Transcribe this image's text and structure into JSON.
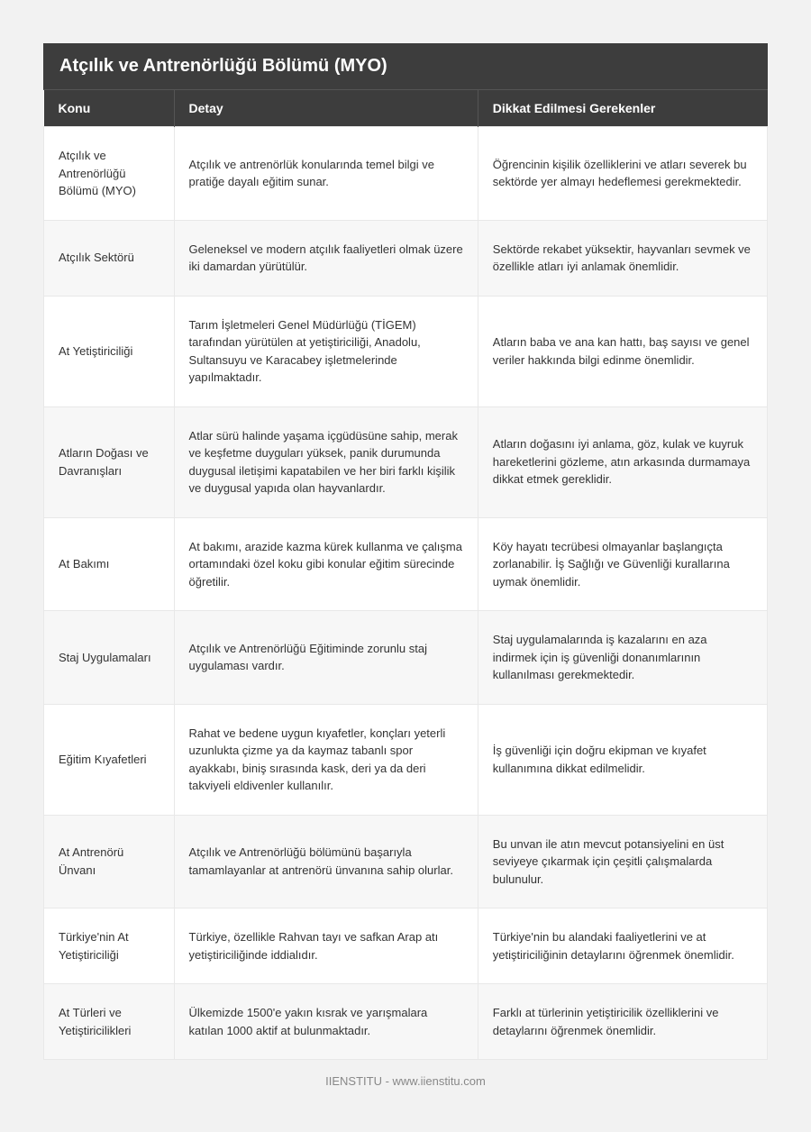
{
  "title": "Atçılık ve Antrenörlüğü Bölümü (MYO)",
  "columns": {
    "topic": "Konu",
    "detail": "Detay",
    "notes": "Dikkat Edilmesi Gerekenler"
  },
  "rows": [
    {
      "topic": "Atçılık ve Antrenörlüğü Bölümü (MYO)",
      "detail": "Atçılık ve antrenörlük konularında temel bilgi ve pratiğe dayalı eğitim sunar.",
      "notes": "Öğrencinin kişilik özelliklerini ve atları severek bu sektörde yer almayı hedeflemesi gerekmektedir."
    },
    {
      "topic": "Atçılık Sektörü",
      "detail": "Geleneksel ve modern atçılık faaliyetleri olmak üzere iki damardan yürütülür.",
      "notes": "Sektörde rekabet yüksektir, hayvanları sevmek ve özellikle atları iyi anlamak önemlidir."
    },
    {
      "topic": "At Yetiştiriciliği",
      "detail": "Tarım İşletmeleri Genel Müdürlüğü (TİGEM) tarafından yürütülen at yetiştiriciliği, Anadolu, Sultansuyu ve Karacabey işletmelerinde yapılmaktadır.",
      "notes": "Atların baba ve ana kan hattı, baş sayısı ve genel veriler hakkında bilgi edinme önemlidir."
    },
    {
      "topic": "Atların Doğası ve Davranışları",
      "detail": "Atlar sürü halinde yaşama içgüdüsüne sahip, merak ve keşfetme duyguları yüksek, panik durumunda duygusal iletişimi kapatabilen ve her biri farklı kişilik ve duygusal yapıda olan hayvanlardır.",
      "notes": "Atların doğasını iyi anlama, göz, kulak ve kuyruk hareketlerini gözleme, atın arkasında durmamaya dikkat etmek gereklidir."
    },
    {
      "topic": "At Bakımı",
      "detail": "At bakımı, arazide kazma kürek kullanma ve çalışma ortamındaki özel koku gibi konular eğitim sürecinde öğretilir.",
      "notes": "Köy hayatı tecrübesi olmayanlar başlangıçta zorlanabilir. İş Sağlığı ve Güvenliği kurallarına uymak önemlidir."
    },
    {
      "topic": "Staj Uygulamaları",
      "detail": "Atçılık ve Antrenörlüğü Eğitiminde zorunlu staj uygulaması vardır.",
      "notes": "Staj uygulamalarında iş kazalarını en aza indirmek için iş güvenliği donanımlarının kullanılması gerekmektedir."
    },
    {
      "topic": "Eğitim Kıyafetleri",
      "detail": "Rahat ve bedene uygun kıyafetler, konçları yeterli uzunlukta çizme ya da kaymaz tabanlı spor ayakkabı, biniş sırasında kask, deri ya da deri takviyeli eldivenler kullanılır.",
      "notes": "İş güvenliği için doğru ekipman ve kıyafet kullanımına dikkat edilmelidir."
    },
    {
      "topic": "At Antrenörü Ünvanı",
      "detail": "Atçılık ve Antrenörlüğü bölümünü başarıyla tamamlayanlar at antrenörü ünvanına sahip olurlar.",
      "notes": "Bu unvan ile atın mevcut potansiyelini en üst seviyeye çıkarmak için çeşitli çalışmalarda bulunulur."
    },
    {
      "topic": "Türkiye'nin At Yetiştiriciliği",
      "detail": "Türkiye, özellikle Rahvan tayı ve safkan Arap atı yetiştiriciliğinde iddialıdır.",
      "notes": "Türkiye'nin bu alandaki faaliyetlerini ve at yetiştiriciliğinin detaylarını öğrenmek önemlidir."
    },
    {
      "topic": "At Türleri ve Yetiştiricilikleri",
      "detail": "Ülkemizde 1500'e yakın kısrak ve yarışmalara katılan 1000 aktif at bulunmaktadır.",
      "notes": "Farklı at türlerinin yetiştiricilik özelliklerini ve detaylarını öğrenmek önemlidir."
    }
  ],
  "footer": "IIENSTITU - www.iienstitu.com",
  "styling": {
    "page_background": "#f2f2f2",
    "header_background": "#3d3d3d",
    "header_text_color": "#ffffff",
    "row_odd_background": "#ffffff",
    "row_even_background": "#f7f7f7",
    "cell_border_color": "#e8e8e8",
    "body_text_color": "#333333",
    "footer_text_color": "#888888",
    "title_font_size": 20,
    "header_font_size": 14,
    "body_font_size": 13,
    "footer_font_size": 13,
    "column_widths_percent": [
      18,
      42,
      40
    ]
  }
}
